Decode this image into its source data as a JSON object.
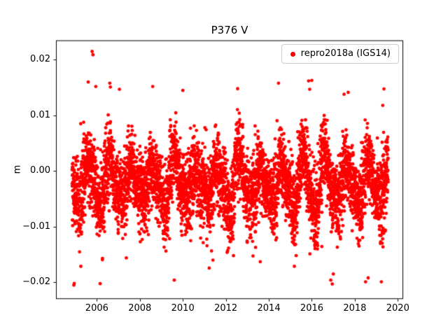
{
  "figure": {
    "background_color": "#ffffff",
    "axes_edge_color": "#000000"
  },
  "legend": {
    "label": "repro2018a (IGS14)",
    "marker_color": "#ff0000",
    "position": "upper right"
  },
  "chart_data": {
    "type": "scatter",
    "title": "P376 V",
    "xlabel": "",
    "ylabel": "m",
    "xlim": [
      2004.1,
      2020.25
    ],
    "ylim": [
      -0.023,
      0.0235
    ],
    "xticks": [
      2006,
      2008,
      2010,
      2012,
      2014,
      2016,
      2018,
      2020
    ],
    "xtick_labels": [
      "2006",
      "2008",
      "2010",
      "2012",
      "2014",
      "2016",
      "2018",
      "2020"
    ],
    "yticks": [
      -0.02,
      -0.01,
      0.0,
      0.01,
      0.02
    ],
    "ytick_labels": [
      "−0.02",
      "−0.01",
      "0.00",
      "0.01",
      "0.02"
    ],
    "grid": false,
    "legend_entries": [
      "repro2018a (IGS14)"
    ],
    "legend_position": "upper right",
    "series": {
      "name": "repro2018a (IGS14)",
      "color": "#ff0000",
      "marker": "dot",
      "marker_radius_px": 2.4,
      "t_start": 2004.85,
      "t_end": 2019.55,
      "samples_per_year": 365,
      "gap_fraction": 0.02,
      "mean_offset_m": -0.0022,
      "annual_amplitude_m": 0.004,
      "annual_amplitude_jitter": 0.9,
      "annual_phase_peak": 0.62,
      "semiannual_amplitude_m": 0.001,
      "noise_sigma_m": 0.0031,
      "heavy_tail_fraction": 0.012,
      "heavy_tail_scale": 1.9,
      "seed": 42,
      "y_min_observed": -0.0206,
      "y_max_observed": 0.0215
    },
    "outlier_points": [
      [
        2004.93,
        -0.0205
      ],
      [
        2004.95,
        -0.0202
      ],
      [
        2005.78,
        0.0215
      ],
      [
        2005.82,
        0.0209
      ],
      [
        2005.6,
        0.016
      ],
      [
        2005.95,
        0.0152
      ],
      [
        2006.6,
        0.0158
      ],
      [
        2006.63,
        0.0151
      ],
      [
        2007.05,
        0.0147
      ],
      [
        2008.6,
        0.0152
      ],
      [
        2009.6,
        -0.0196
      ],
      [
        2010.0,
        0.0145
      ],
      [
        2011.4,
        -0.016
      ],
      [
        2012.55,
        0.0148
      ],
      [
        2013.6,
        -0.0163
      ],
      [
        2014.45,
        0.0158
      ],
      [
        2015.85,
        0.0162
      ],
      [
        2015.9,
        0.0147
      ],
      [
        2016.0,
        0.0163
      ],
      [
        2016.88,
        -0.0196
      ],
      [
        2016.95,
        -0.0203
      ],
      [
        2017.0,
        -0.0185
      ],
      [
        2017.5,
        0.0138
      ],
      [
        2018.5,
        -0.0199
      ],
      [
        2018.62,
        -0.0192
      ],
      [
        2019.3,
        0.0118
      ]
    ]
  }
}
